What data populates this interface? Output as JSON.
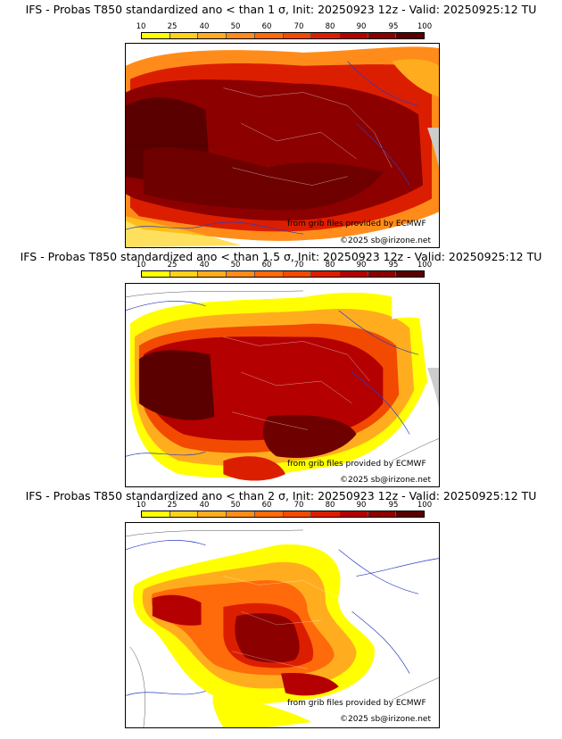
{
  "panels": [
    {
      "title": "IFS - Probas T850  standardized ano < than 1 σ, Init: 20250923 12z - Valid: 20250925:12 TU",
      "credit_source": "from grib files provided by ECMWF",
      "credit_copyright": "©2025 sb@irizone.net"
    },
    {
      "title": "IFS - Probas T850  standardized ano < than 1.5 σ, Init: 20250923 12z - Valid: 20250925:12 TU",
      "credit_source": "from grib files provided by ECMWF",
      "credit_copyright": "©2025 sb@irizone.net"
    },
    {
      "title": "IFS - Probas T850  standardized ano < than 2 σ, Init: 20250923 12z - Valid: 20250925:12 TU",
      "credit_source": "from grib files provided by ECMWF",
      "credit_copyright": "©2025 sb@irizone.net"
    }
  ],
  "colorbar": {
    "labels": [
      "10",
      "25",
      "40",
      "50",
      "60",
      "70",
      "80",
      "90",
      "95",
      "100"
    ],
    "colors": [
      "#ffff00",
      "#ffd21a",
      "#ffad1f",
      "#ff8c1a",
      "#ff6a0a",
      "#f24a00",
      "#dc1e00",
      "#b40000",
      "#8c0000",
      "#5a0000"
    ]
  }
}
